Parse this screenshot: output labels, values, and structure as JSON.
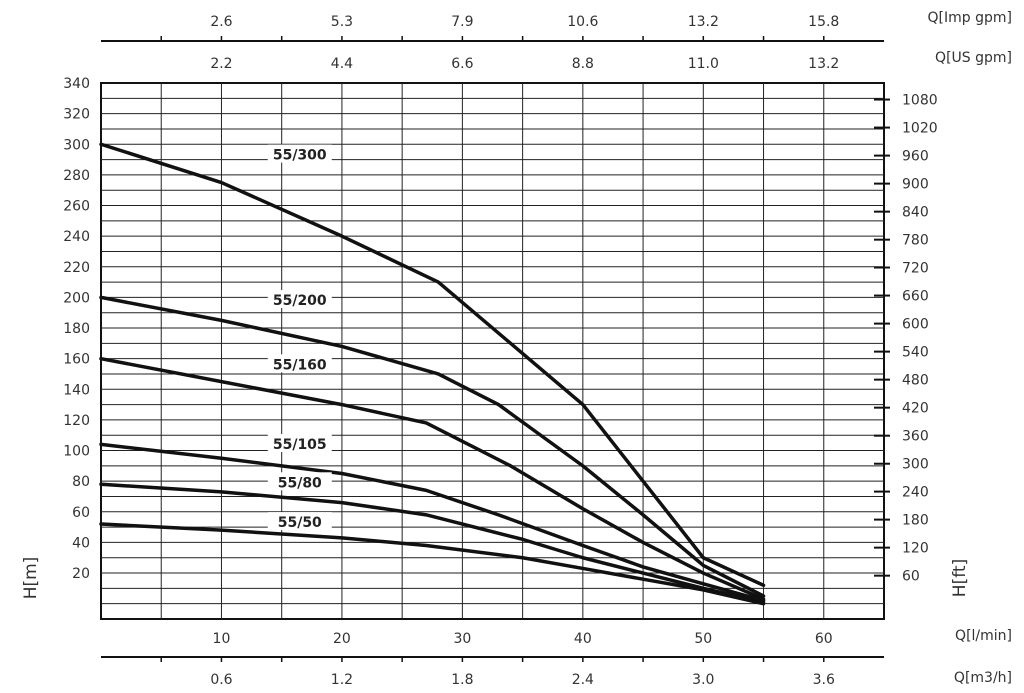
{
  "chart_data": {
    "type": "line",
    "title": "",
    "xlabel": "Q[l/min]",
    "ylabel": "H[m]",
    "xlim": [
      0,
      65
    ],
    "ylim": [
      -10,
      340
    ],
    "grid": true,
    "y_ticks": [
      20,
      40,
      60,
      80,
      100,
      120,
      140,
      160,
      180,
      200,
      220,
      240,
      260,
      280,
      300,
      320,
      340
    ],
    "x_ticks": [
      10,
      20,
      30,
      40,
      50,
      60
    ],
    "secondary_axes": {
      "top_imp": {
        "label": "Q[Imp gpm]",
        "ticks": [
          "2.6",
          "5.3",
          "7.9",
          "10.6",
          "13.2",
          "15.8"
        ]
      },
      "top_us": {
        "label": "Q[US gpm]",
        "ticks": [
          "2.2",
          "4.4",
          "6.6",
          "8.8",
          "11.0",
          "13.2"
        ]
      },
      "bottom_m3h": {
        "label": "Q[m3/h]",
        "ticks": [
          "0.6",
          "1.2",
          "1.8",
          "2.4",
          "3.0",
          "3.6"
        ]
      },
      "right_ft": {
        "label": "H[ft]",
        "ticks": [
          {
            "label": "60",
            "m": 18.3
          },
          {
            "label": "120",
            "m": 36.6
          },
          {
            "label": "180",
            "m": 54.9
          },
          {
            "label": "240",
            "m": 73.2
          },
          {
            "label": "300",
            "m": 91.4
          },
          {
            "label": "360",
            "m": 109.7
          },
          {
            "label": "420",
            "m": 128.0
          },
          {
            "label": "480",
            "m": 146.3
          },
          {
            "label": "540",
            "m": 164.6
          },
          {
            "label": "600",
            "m": 182.9
          },
          {
            "label": "660",
            "m": 201.2
          },
          {
            "label": "720",
            "m": 219.5
          },
          {
            "label": "780",
            "m": 237.7
          },
          {
            "label": "840",
            "m": 256.0
          },
          {
            "label": "900",
            "m": 274.3
          },
          {
            "label": "960",
            "m": 292.6
          },
          {
            "label": "1020",
            "m": 310.9
          },
          {
            "label": "1080",
            "m": 329.2
          }
        ]
      }
    },
    "series": [
      {
        "name": "55/300",
        "x": [
          0,
          10,
          20,
          28,
          34,
          40,
          45,
          50,
          55
        ],
        "y": [
          300,
          275,
          240,
          210,
          170,
          130,
          80,
          30,
          12
        ]
      },
      {
        "name": "55/200",
        "x": [
          0,
          10,
          20,
          28,
          33,
          40,
          45,
          50,
          55
        ],
        "y": [
          200,
          185,
          168,
          150,
          130,
          90,
          58,
          25,
          5
        ]
      },
      {
        "name": "55/160",
        "x": [
          0,
          10,
          20,
          27,
          34,
          40,
          45,
          50,
          55
        ],
        "y": [
          160,
          145,
          130,
          118,
          90,
          62,
          40,
          20,
          3
        ]
      },
      {
        "name": "55/105",
        "x": [
          0,
          10,
          20,
          27,
          33,
          40,
          45,
          50,
          55
        ],
        "y": [
          104,
          95,
          85,
          74,
          58,
          38,
          24,
          13,
          2
        ]
      },
      {
        "name": "55/80",
        "x": [
          0,
          10,
          20,
          27,
          35,
          40,
          45,
          50,
          55
        ],
        "y": [
          78,
          73,
          66,
          58,
          42,
          30,
          20,
          10,
          1
        ]
      },
      {
        "name": "55/50",
        "x": [
          0,
          10,
          20,
          27,
          35,
          40,
          45,
          50,
          55
        ],
        "y": [
          52,
          48,
          43,
          38,
          30,
          23,
          16,
          9,
          0
        ]
      }
    ]
  }
}
